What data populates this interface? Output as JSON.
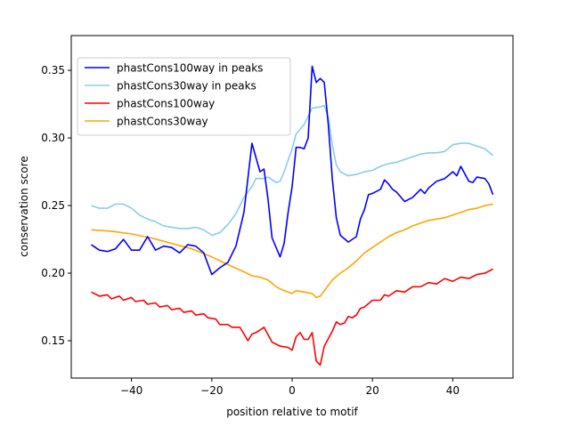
{
  "chart_data": {
    "type": "line",
    "title": "",
    "xlabel": "position relative to motif",
    "ylabel": "conservation score",
    "xlim": [
      -55,
      55
    ],
    "ylim": [
      0.1224,
      0.3757
    ],
    "xticks": [
      -40,
      -20,
      0,
      20,
      40
    ],
    "xtick_labels": [
      "−40",
      "−20",
      "0",
      "20",
      "40"
    ],
    "yticks": [
      0.15,
      0.2,
      0.25,
      0.3,
      0.35
    ],
    "ytick_labels": [
      "0.15",
      "0.20",
      "0.25",
      "0.30",
      "0.35"
    ],
    "grid": false,
    "legend_position": "top-left",
    "series": [
      {
        "name": "phastCons100way in peaks",
        "color": "#0000ff",
        "x": [
          -50,
          -48,
          -46,
          -44,
          -42,
          -40,
          -38,
          -36,
          -34,
          -32,
          -30,
          -28,
          -26,
          -24,
          -22,
          -20,
          -18,
          -16,
          -14,
          -12,
          -10,
          -8,
          -7,
          -6,
          -5,
          -3,
          -2,
          -1,
          0,
          1,
          2,
          3,
          4,
          5,
          6,
          7,
          8,
          9,
          10,
          11,
          12,
          14,
          16,
          17,
          18,
          19,
          20,
          22,
          23,
          24,
          25,
          26,
          28,
          30,
          32,
          33,
          34,
          36,
          38,
          40,
          41,
          42,
          44,
          45,
          46,
          48,
          49,
          50
        ],
        "y": [
          0.221,
          0.217,
          0.216,
          0.218,
          0.225,
          0.217,
          0.217,
          0.227,
          0.217,
          0.22,
          0.219,
          0.215,
          0.221,
          0.22,
          0.215,
          0.199,
          0.204,
          0.208,
          0.22,
          0.245,
          0.296,
          0.275,
          0.277,
          0.255,
          0.226,
          0.212,
          0.222,
          0.245,
          0.264,
          0.293,
          0.293,
          0.292,
          0.3,
          0.353,
          0.341,
          0.344,
          0.341,
          0.31,
          0.27,
          0.241,
          0.228,
          0.223,
          0.227,
          0.24,
          0.247,
          0.258,
          0.259,
          0.262,
          0.269,
          0.266,
          0.262,
          0.26,
          0.253,
          0.256,
          0.262,
          0.259,
          0.263,
          0.268,
          0.27,
          0.275,
          0.272,
          0.279,
          0.268,
          0.267,
          0.271,
          0.27,
          0.266,
          0.258
        ]
      },
      {
        "name": "phastCons30way in peaks",
        "color": "#87ceeb",
        "x": [
          -50,
          -48,
          -46,
          -44,
          -42,
          -40,
          -38,
          -36,
          -34,
          -32,
          -30,
          -28,
          -26,
          -24,
          -22,
          -20,
          -18,
          -16,
          -14,
          -12,
          -10,
          -9,
          -7,
          -6,
          -4,
          -3,
          -2,
          0,
          1,
          3,
          5,
          7,
          8,
          9,
          10,
          11,
          12,
          14,
          16,
          18,
          20,
          22,
          24,
          26,
          28,
          30,
          32,
          34,
          36,
          38,
          40,
          42,
          44,
          46,
          48,
          50
        ],
        "y": [
          0.25,
          0.248,
          0.248,
          0.251,
          0.251,
          0.248,
          0.243,
          0.24,
          0.238,
          0.235,
          0.234,
          0.233,
          0.233,
          0.234,
          0.232,
          0.228,
          0.23,
          0.236,
          0.244,
          0.256,
          0.264,
          0.27,
          0.27,
          0.271,
          0.267,
          0.268,
          0.275,
          0.292,
          0.303,
          0.31,
          0.322,
          0.323,
          0.324,
          0.315,
          0.295,
          0.28,
          0.275,
          0.272,
          0.273,
          0.275,
          0.276,
          0.279,
          0.281,
          0.282,
          0.284,
          0.286,
          0.288,
          0.289,
          0.289,
          0.29,
          0.295,
          0.296,
          0.296,
          0.294,
          0.292,
          0.287
        ]
      },
      {
        "name": "phastCons100way",
        "color": "#ff0000",
        "x": [
          -50,
          -48,
          -46,
          -45,
          -43,
          -42,
          -40,
          -39,
          -37,
          -36,
          -34,
          -33,
          -31,
          -30,
          -28,
          -27,
          -25,
          -24,
          -22,
          -21,
          -19,
          -18,
          -16,
          -15,
          -13,
          -11,
          -10,
          -9,
          -7,
          -5,
          -3,
          -1,
          0,
          1,
          2,
          3,
          4,
          5,
          6,
          7,
          8,
          10,
          11,
          12,
          13,
          14,
          15,
          16,
          17,
          18,
          20,
          22,
          23,
          24,
          26,
          28,
          30,
          32,
          34,
          36,
          38,
          40,
          42,
          44,
          46,
          48,
          50
        ],
        "y": [
          0.186,
          0.183,
          0.184,
          0.181,
          0.183,
          0.18,
          0.182,
          0.179,
          0.18,
          0.177,
          0.178,
          0.175,
          0.176,
          0.173,
          0.174,
          0.171,
          0.172,
          0.169,
          0.17,
          0.167,
          0.166,
          0.162,
          0.162,
          0.16,
          0.16,
          0.15,
          0.155,
          0.156,
          0.16,
          0.149,
          0.146,
          0.145,
          0.143,
          0.153,
          0.156,
          0.151,
          0.151,
          0.156,
          0.135,
          0.132,
          0.146,
          0.157,
          0.164,
          0.162,
          0.163,
          0.168,
          0.167,
          0.169,
          0.174,
          0.175,
          0.18,
          0.18,
          0.184,
          0.183,
          0.187,
          0.186,
          0.19,
          0.19,
          0.193,
          0.192,
          0.196,
          0.194,
          0.197,
          0.196,
          0.199,
          0.2,
          0.203
        ]
      },
      {
        "name": "phastCons30way",
        "color": "#ffa500",
        "x": [
          -50,
          -45,
          -40,
          -35,
          -30,
          -25,
          -20,
          -15,
          -12,
          -10,
          -8,
          -6,
          -4,
          -2,
          0,
          1,
          3,
          5,
          6,
          7,
          8,
          10,
          12,
          14,
          16,
          18,
          20,
          22,
          24,
          26,
          28,
          30,
          32,
          34,
          36,
          38,
          40,
          42,
          44,
          46,
          48,
          50
        ],
        "y": [
          0.232,
          0.231,
          0.229,
          0.226,
          0.222,
          0.218,
          0.212,
          0.205,
          0.201,
          0.198,
          0.197,
          0.195,
          0.19,
          0.187,
          0.185,
          0.187,
          0.186,
          0.185,
          0.182,
          0.183,
          0.187,
          0.195,
          0.2,
          0.204,
          0.209,
          0.215,
          0.219,
          0.223,
          0.227,
          0.23,
          0.232,
          0.235,
          0.237,
          0.239,
          0.24,
          0.241,
          0.243,
          0.245,
          0.247,
          0.248,
          0.25,
          0.251
        ]
      }
    ]
  }
}
